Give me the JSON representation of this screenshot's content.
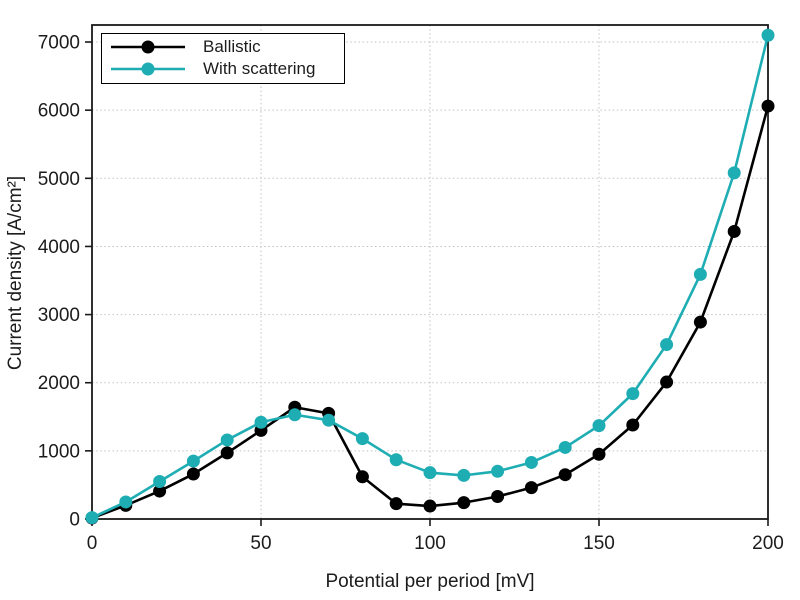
{
  "figure": {
    "background": "#ffffff",
    "axis_color": "#1a1a1a",
    "grid_color": "#c2c2c2",
    "tick_label_color": "#1c1c1c"
  },
  "chart_data": {
    "type": "line",
    "xlabel": "Potential per period [mV]",
    "ylabel": "Current density [A/cm²]",
    "xlim": [
      0,
      200
    ],
    "ylim": [
      0,
      7250
    ],
    "x_ticks": [
      0,
      50,
      100,
      150,
      200
    ],
    "y_ticks": [
      0,
      1000,
      2000,
      3000,
      4000,
      5000,
      6000,
      7000
    ],
    "grid": true,
    "grid_style": "dotted",
    "legend_position": "upper-left",
    "marker": "circle",
    "x": [
      0,
      10,
      20,
      30,
      40,
      50,
      60,
      70,
      80,
      90,
      100,
      110,
      120,
      130,
      140,
      150,
      160,
      170,
      180,
      190,
      200
    ],
    "series": [
      {
        "name": "Ballistic",
        "color": "#000000",
        "values": [
          15,
          200,
          410,
          660,
          970,
          1300,
          1640,
          1550,
          620,
          225,
          190,
          240,
          330,
          460,
          650,
          950,
          1380,
          2010,
          2890,
          4220,
          6060
        ]
      },
      {
        "name": "With scattering",
        "color": "#1fadb4",
        "values": [
          20,
          250,
          550,
          850,
          1160,
          1420,
          1530,
          1450,
          1180,
          870,
          680,
          640,
          700,
          830,
          1050,
          1370,
          1840,
          2560,
          3590,
          5080,
          7100
        ]
      }
    ]
  }
}
